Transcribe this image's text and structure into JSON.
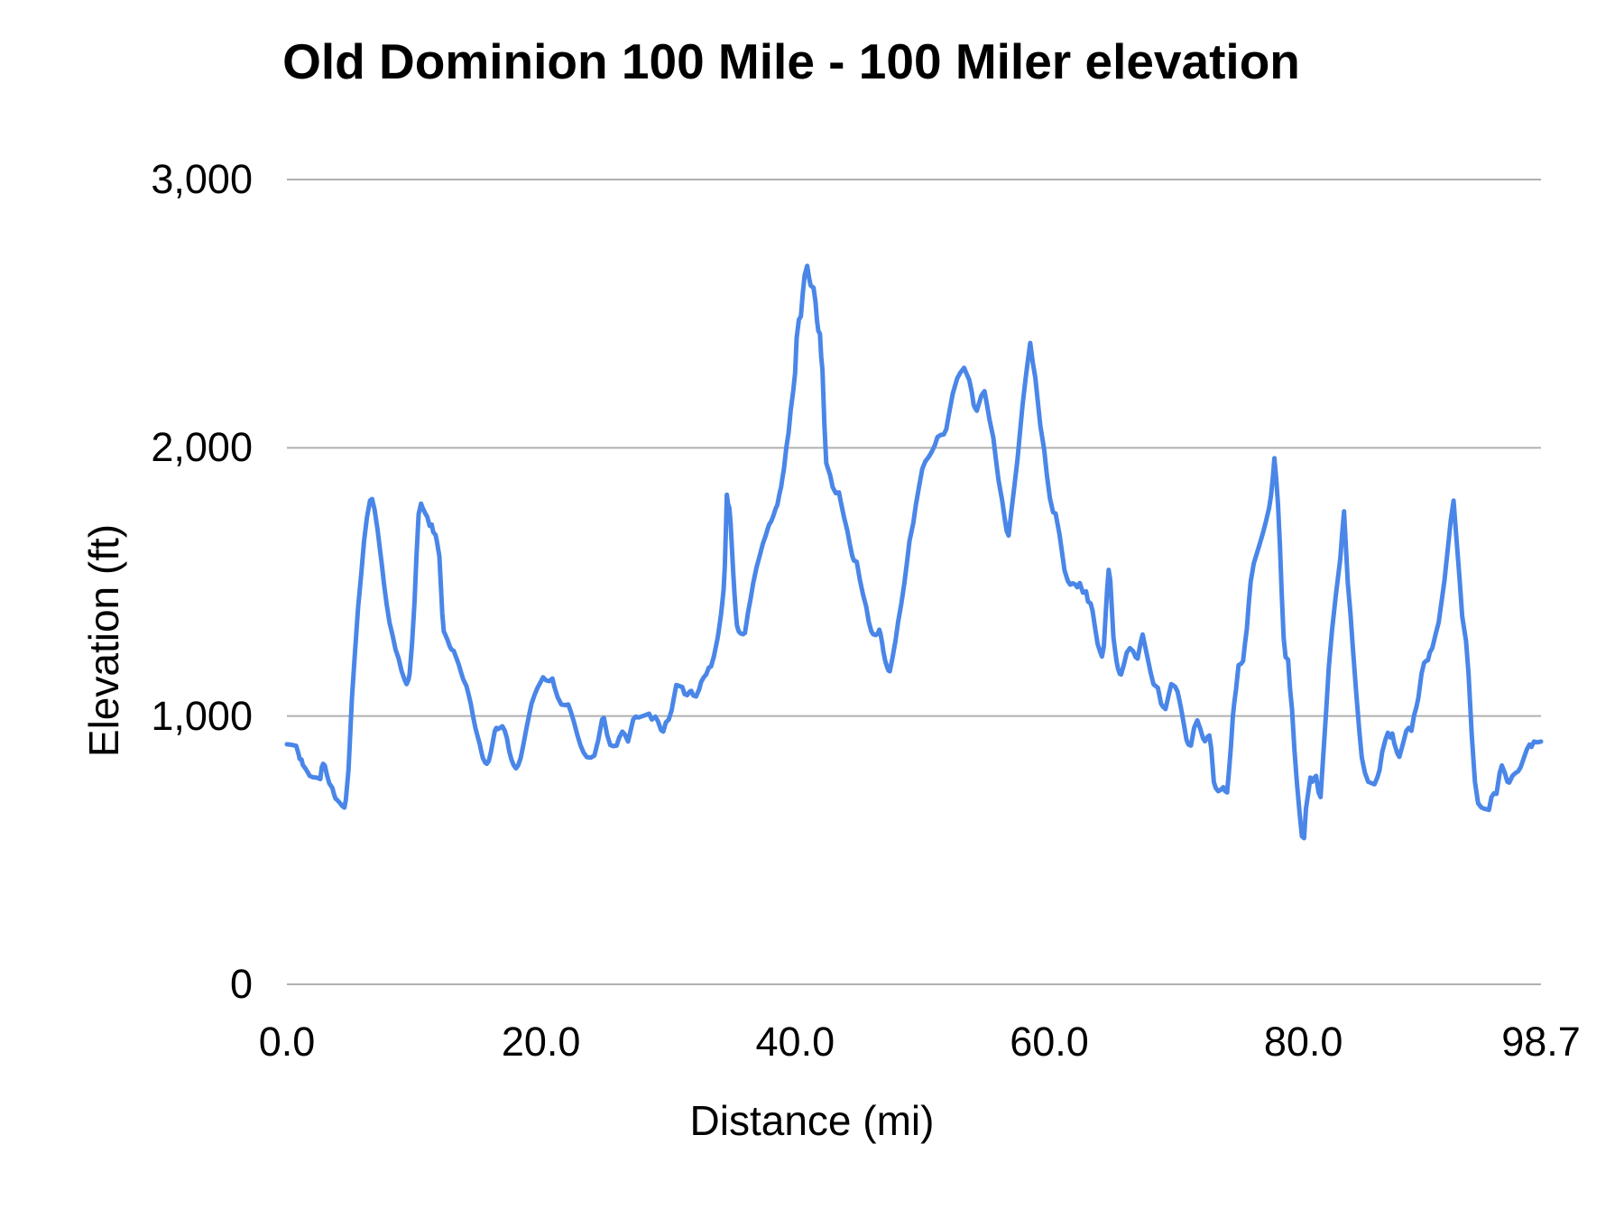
{
  "chart_data": {
    "type": "line",
    "title": "Old Dominion 100 Mile - 100 Miler elevation",
    "xlabel": "Distance (mi)",
    "ylabel": "Elevation (ft)",
    "xlim": [
      0,
      98.7
    ],
    "ylim": [
      0,
      3000
    ],
    "grid": true,
    "legend": "none",
    "line_color": "#4a86e8",
    "grid_color": "#b0b0b0",
    "text_color": "#000000",
    "xticks": {
      "values": [
        0,
        20,
        40,
        60,
        80,
        98.7
      ],
      "labels": [
        "0.0",
        "20.0",
        "40.0",
        "60.0",
        "80.0",
        "98.7"
      ]
    },
    "yticks": {
      "values": [
        0,
        1000,
        2000,
        3000
      ],
      "labels": [
        "0",
        "1,000",
        "2,000",
        "3,000"
      ]
    },
    "series_name": "Elevation (ft)",
    "x": [
      0.0,
      0.35,
      0.73,
      0.92,
      1.0,
      1.15,
      1.25,
      1.45,
      1.62,
      1.8,
      2.05,
      2.3,
      2.5,
      2.63,
      2.75,
      2.85,
      2.98,
      3.15,
      3.34,
      3.58,
      3.7,
      3.82,
      4.0,
      4.17,
      4.35,
      4.52,
      4.64,
      4.85,
      5.12,
      5.35,
      5.6,
      5.85,
      6.07,
      6.3,
      6.54,
      6.7,
      6.9,
      7.13,
      7.3,
      7.48,
      7.65,
      7.85,
      8.07,
      8.3,
      8.55,
      8.8,
      9.02,
      9.26,
      9.42,
      9.57,
      9.66,
      9.85,
      10.05,
      10.2,
      10.37,
      10.56,
      10.68,
      10.85,
      11.05,
      11.23,
      11.4,
      11.52,
      11.7,
      11.8,
      12.0,
      12.12,
      12.23,
      12.35,
      12.46,
      12.65,
      12.82,
      12.95,
      13.13,
      13.22,
      13.36,
      13.53,
      13.7,
      13.88,
      14.12,
      14.3,
      14.47,
      14.64,
      14.83,
      15.02,
      15.18,
      15.3,
      15.42,
      15.6,
      15.73,
      15.89,
      16.06,
      16.25,
      16.37,
      16.49,
      16.61,
      16.77,
      16.96,
      17.15,
      17.32,
      17.48,
      17.67,
      17.86,
      18.03,
      18.2,
      18.4,
      18.62,
      18.86,
      19.05,
      19.25,
      19.5,
      19.75,
      19.95,
      20.16,
      20.4,
      20.65,
      20.9,
      21.05,
      21.3,
      21.6,
      21.9,
      22.15,
      22.35,
      22.6,
      22.85,
      23.1,
      23.35,
      23.6,
      23.9,
      24.2,
      24.5,
      24.8,
      24.95,
      25.2,
      25.45,
      25.7,
      25.95,
      26.15,
      26.4,
      26.6,
      26.85,
      27.05,
      27.25,
      27.45,
      27.7,
      28.0,
      28.3,
      28.5,
      28.72,
      29.0,
      29.2,
      29.45,
      29.62,
      29.82,
      30.05,
      30.28,
      30.45,
      30.65,
      30.9,
      31.12,
      31.3,
      31.5,
      31.68,
      31.82,
      31.98,
      32.2,
      32.45,
      32.6,
      32.8,
      33.0,
      33.2,
      33.38,
      33.6,
      33.75,
      33.87,
      33.97,
      34.07,
      34.17,
      34.27,
      34.37,
      34.47,
      34.55,
      34.62,
      34.72,
      34.82,
      34.92,
      35.02,
      35.12,
      35.22,
      35.32,
      35.42,
      35.57,
      35.72,
      35.9,
      36.05,
      36.3,
      36.5,
      36.7,
      36.95,
      37.2,
      37.45,
      37.7,
      37.83,
      37.95,
      38.1,
      38.25,
      38.48,
      38.6,
      38.78,
      38.9,
      39.0,
      39.12,
      39.3,
      39.48,
      39.65,
      39.85,
      40.0,
      40.12,
      40.3,
      40.45,
      40.6,
      40.75,
      40.95,
      41.1,
      41.22,
      41.35,
      41.45,
      41.6,
      41.72,
      41.82,
      41.95,
      42.05,
      42.15,
      42.3,
      42.45,
      42.75,
      42.95,
      43.2,
      43.45,
      43.6,
      43.85,
      44.1,
      44.3,
      44.5,
      44.62,
      44.85,
      45.1,
      45.35,
      45.6,
      45.8,
      46.0,
      46.15,
      46.35,
      46.5,
      46.62,
      46.72,
      46.85,
      46.95,
      47.1,
      47.25,
      47.35,
      47.45,
      47.65,
      47.9,
      48.1,
      48.35,
      48.6,
      48.8,
      49.0,
      49.3,
      49.5,
      49.75,
      50.0,
      50.25,
      50.5,
      50.75,
      51.0,
      51.2,
      51.45,
      51.7,
      51.9,
      52.1,
      52.4,
      52.75,
      53.0,
      53.3,
      53.55,
      53.7,
      53.9,
      54.05,
      54.15,
      54.3,
      54.5,
      54.65,
      54.9,
      55.1,
      55.3,
      55.6,
      55.8,
      56.0,
      56.3,
      56.5,
      56.65,
      56.8,
      57.0,
      57.25,
      57.5,
      57.7,
      57.9,
      58.15,
      58.3,
      58.5,
      58.7,
      58.9,
      59.1,
      59.3,
      59.6,
      59.8,
      60.05,
      60.3,
      60.5,
      60.8,
      61.0,
      61.2,
      61.45,
      61.65,
      61.85,
      62.05,
      62.2,
      62.4,
      62.65,
      62.9,
      63.05,
      63.25,
      63.4,
      63.6,
      63.8,
      64.0,
      64.15,
      64.3,
      64.45,
      64.55,
      64.67,
      64.8,
      64.92,
      65.05,
      65.17,
      65.3,
      65.42,
      65.55,
      65.65,
      65.87,
      66.1,
      66.35,
      66.6,
      66.8,
      66.95,
      67.2,
      67.35,
      67.5,
      67.75,
      68.0,
      68.2,
      68.35,
      68.55,
      68.8,
      68.95,
      69.15,
      69.4,
      69.6,
      69.75,
      69.9,
      70.1,
      70.35,
      70.6,
      70.8,
      70.95,
      71.15,
      71.4,
      71.65,
      71.9,
      72.1,
      72.25,
      72.45,
      72.6,
      72.75,
      72.95,
      73.1,
      73.3,
      73.5,
      73.7,
      73.85,
      74.0,
      74.15,
      74.3,
      74.45,
      74.55,
      74.7,
      74.9,
      75.1,
      75.25,
      75.4,
      75.55,
      75.7,
      75.85,
      76.1,
      76.3,
      76.55,
      76.8,
      77.05,
      77.3,
      77.45,
      77.6,
      77.72,
      77.85,
      78.0,
      78.15,
      78.3,
      78.45,
      78.6,
      78.8,
      78.95,
      79.1,
      79.3,
      79.5,
      79.7,
      79.88,
      80.05,
      80.2,
      80.4,
      80.55,
      80.7,
      80.85,
      81.0,
      81.2,
      81.35,
      81.55,
      81.8,
      82.0,
      82.25,
      82.55,
      82.9,
      83.05,
      83.2,
      83.5,
      83.7,
      83.9,
      84.15,
      84.4,
      84.6,
      84.85,
      85.1,
      85.35,
      85.6,
      85.82,
      86.0,
      86.2,
      86.45,
      86.65,
      86.85,
      87.0,
      87.15,
      87.4,
      87.55,
      87.85,
      88.1,
      88.3,
      88.5,
      88.7,
      88.9,
      89.05,
      89.3,
      89.5,
      89.65,
      89.8,
      89.95,
      90.15,
      90.4,
      90.65,
      91.1,
      91.35,
      91.6,
      91.82,
      92.05,
      92.3,
      92.5,
      92.8,
      93.0,
      93.25,
      93.5,
      93.75,
      94.0,
      94.2,
      94.45,
      94.6,
      94.8,
      95.0,
      95.2,
      95.45,
      95.62,
      95.85,
      96.05,
      96.2,
      96.45,
      96.7,
      96.9,
      97.1,
      97.35,
      97.6,
      97.8,
      97.95,
      98.15,
      98.4,
      98.7
    ],
    "y": [
      895,
      893,
      889,
      858,
      840,
      838,
      818,
      805,
      792,
      777,
      772,
      771,
      768,
      765,
      810,
      822,
      816,
      780,
      749,
      732,
      710,
      693,
      685,
      676,
      665,
      659,
      687,
      800,
      1068,
      1230,
      1404,
      1530,
      1652,
      1740,
      1803,
      1809,
      1769,
      1697,
      1630,
      1562,
      1490,
      1416,
      1349,
      1304,
      1248,
      1214,
      1169,
      1136,
      1119,
      1136,
      1158,
      1270,
      1428,
      1596,
      1753,
      1792,
      1776,
      1759,
      1742,
      1709,
      1714,
      1686,
      1675,
      1652,
      1596,
      1484,
      1383,
      1315,
      1304,
      1282,
      1260,
      1248,
      1243,
      1231,
      1214,
      1192,
      1164,
      1136,
      1113,
      1080,
      1046,
      1001,
      956,
      923,
      895,
      867,
      844,
      827,
      822,
      833,
      867,
      917,
      945,
      956,
      951,
      956,
      962,
      945,
      917,
      872,
      838,
      816,
      805,
      816,
      844,
      895,
      956,
      1001,
      1046,
      1080,
      1108,
      1125,
      1145,
      1133,
      1130,
      1140,
      1110,
      1071,
      1043,
      1041,
      1043,
      1015,
      976,
      931,
      892,
      864,
      847,
      845,
      853,
      909,
      987,
      993,
      931,
      892,
      888,
      890,
      920,
      942,
      931,
      905,
      945,
      987,
      998,
      995,
      1000,
      1005,
      1009,
      987,
      998,
      981,
      948,
      942,
      976,
      987,
      1021,
      1066,
      1116,
      1112,
      1108,
      1082,
      1078,
      1090,
      1094,
      1077,
      1073,
      1100,
      1127,
      1144,
      1155,
      1180,
      1185,
      1222,
      1256,
      1284,
      1312,
      1346,
      1380,
      1424,
      1470,
      1560,
      1700,
      1825,
      1790,
      1776,
      1719,
      1629,
      1540,
      1461,
      1394,
      1338,
      1315,
      1308,
      1305,
      1310,
      1388,
      1438,
      1495,
      1552,
      1596,
      1641,
      1675,
      1697,
      1714,
      1725,
      1742,
      1775,
      1787,
      1831,
      1854,
      1887,
      1921,
      2000,
      2055,
      2140,
      2212,
      2280,
      2410,
      2478,
      2490,
      2577,
      2644,
      2678,
      2633,
      2605,
      2600,
      2597,
      2543,
      2476,
      2436,
      2425,
      2340,
      2290,
      2090,
      1943,
      1898,
      1853,
      1831,
      1834,
      1797,
      1741,
      1692,
      1641,
      1596,
      1580,
      1575,
      1507,
      1451,
      1406,
      1350,
      1316,
      1305,
      1302,
      1308,
      1322,
      1305,
      1272,
      1238,
      1204,
      1181,
      1170,
      1167,
      1215,
      1282,
      1350,
      1417,
      1496,
      1574,
      1653,
      1720,
      1787,
      1854,
      1921,
      1950,
      1965,
      1985,
      2010,
      2040,
      2048,
      2050,
      2070,
      2124,
      2202,
      2258,
      2280,
      2298,
      2270,
      2253,
      2208,
      2160,
      2149,
      2138,
      2170,
      2194,
      2211,
      2160,
      2104,
      2037,
      1958,
      1880,
      1801,
      1734,
      1690,
      1673,
      1756,
      1857,
      1958,
      2060,
      2160,
      2262,
      2318,
      2391,
      2318,
      2262,
      2172,
      2082,
      1992,
      1902,
      1812,
      1760,
      1755,
      1678,
      1611,
      1543,
      1505,
      1490,
      1495,
      1490,
      1480,
      1496,
      1460,
      1465,
      1427,
      1420,
      1393,
      1330,
      1270,
      1240,
      1222,
      1260,
      1390,
      1470,
      1545,
      1506,
      1405,
      1293,
      1248,
      1203,
      1175,
      1158,
      1155,
      1192,
      1237,
      1253,
      1242,
      1220,
      1214,
      1276,
      1304,
      1270,
      1214,
      1158,
      1119,
      1113,
      1105,
      1046,
      1035,
      1026,
      1080,
      1119,
      1115,
      1110,
      1091,
      1035,
      967,
      911,
      894,
      890,
      956,
      984,
      950,
      917,
      906,
      922,
      928,
      880,
      754,
      732,
      720,
      725,
      735,
      720,
      715,
      800,
      890,
      1000,
      1046,
      1100,
      1190,
      1195,
      1205,
      1270,
      1326,
      1420,
      1500,
      1570,
      1600,
      1640,
      1680,
      1725,
      1775,
      1820,
      1890,
      1961,
      1890,
      1790,
      1640,
      1450,
      1290,
      1220,
      1210,
      1100,
      1027,
      870,
      746,
      640,
      552,
      545,
      654,
      720,
      771,
      755,
      770,
      777,
      715,
      698,
      845,
      1025,
      1182,
      1317,
      1450,
      1585,
      1680,
      1763,
      1495,
      1383,
      1248,
      1091,
      945,
      845,
      788,
      755,
      750,
      746,
      771,
      799,
      866,
      911,
      938,
      920,
      935,
      899,
      860,
      848,
      899,
      945,
      956,
      945,
      1001,
      1035,
      1068,
      1158,
      1198,
      1205,
      1208,
      1237,
      1254,
      1304,
      1349,
      1505,
      1617,
      1730,
      1803,
      1662,
      1505,
      1371,
      1280,
      1158,
      933,
      754,
      675,
      660,
      655,
      652,
      650,
      698,
      712,
      710,
      788,
      816,
      788,
      755,
      752,
      777,
      788,
      794,
      810,
      844,
      877,
      894,
      885,
      905,
      902,
      905
    ]
  },
  "layout_labels": {
    "title": "Old Dominion 100 Mile - 100 Miler elevation",
    "y_axis_title": "Elevation (ft)",
    "x_axis_title": "Distance (mi)"
  }
}
